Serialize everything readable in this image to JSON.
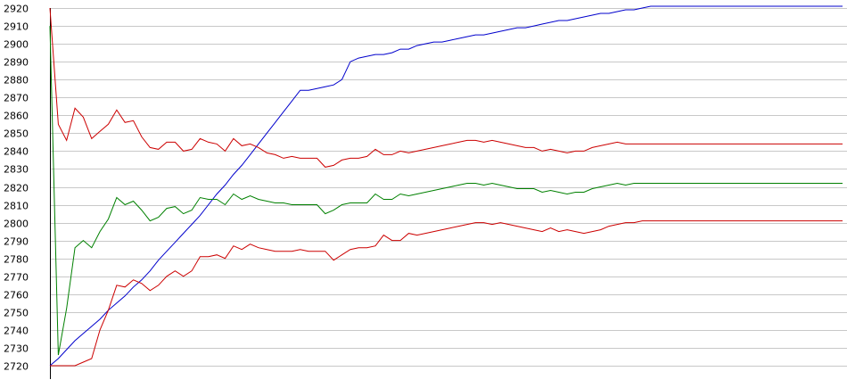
{
  "chart_data": {
    "type": "line",
    "title": "",
    "xlabel": "",
    "ylabel": "",
    "ylim": [
      2720,
      2920
    ],
    "grid": true,
    "legend": "none",
    "y_ticks": [
      "2720",
      "2730",
      "2740",
      "2750",
      "2760",
      "2770",
      "2780",
      "2790",
      "2800",
      "2810",
      "2820",
      "2830",
      "2840",
      "2850",
      "2860",
      "2870",
      "2880",
      "2890",
      "2900",
      "2910",
      "2920"
    ],
    "x": [
      1,
      2,
      3,
      4,
      5,
      6,
      7,
      8,
      9,
      10,
      11,
      12,
      13,
      14,
      15,
      16,
      17,
      18,
      19,
      20,
      21,
      22,
      23,
      24,
      25,
      26,
      27,
      28,
      29,
      30,
      31,
      32,
      33,
      34,
      35,
      36,
      37,
      38,
      39,
      40,
      41,
      42,
      43,
      44,
      45,
      46,
      47,
      48,
      49,
      50,
      51,
      52,
      53,
      54,
      55,
      56,
      57,
      58,
      59,
      60,
      61,
      62,
      63,
      64,
      65,
      66,
      67,
      68,
      69,
      70,
      71,
      72,
      73,
      74,
      75,
      76,
      77,
      78,
      79,
      80,
      81,
      82,
      83,
      84,
      85,
      86,
      87,
      88,
      89,
      90,
      91,
      92,
      93,
      94,
      95,
      96
    ],
    "series": [
      {
        "color": "#0000cc",
        "values": [
          2720,
          2724,
          2729,
          2734,
          2738,
          2742,
          2746,
          2751,
          2755,
          2759,
          2764,
          2768,
          2773,
          2779,
          2784,
          2789,
          2794,
          2799,
          2804,
          2810,
          2816,
          2821,
          2827,
          2832,
          2838,
          2844,
          2850,
          2856,
          2862,
          2868,
          2874,
          2874,
          2875,
          2876,
          2877,
          2880,
          2890,
          2892,
          2893,
          2894,
          2894,
          2895,
          2897,
          2897,
          2899,
          2900,
          2901,
          2901,
          2902,
          2903,
          2904,
          2905,
          2905,
          2906,
          2907,
          2908,
          2909,
          2909,
          2910,
          2911,
          2912,
          2913,
          2913,
          2914,
          2915,
          2916,
          2917,
          2917,
          2918,
          2919,
          2919,
          2920,
          2921,
          2921,
          2921,
          2921,
          2921,
          2921,
          2921,
          2921,
          2921,
          2921,
          2921,
          2921,
          2921,
          2921,
          2921,
          2921,
          2921,
          2921,
          2921,
          2921,
          2921,
          2921,
          2921,
          2921
        ]
      },
      {
        "color": "#cc0000",
        "values": [
          2920,
          2855,
          2846,
          2864,
          2859,
          2847,
          2851,
          2855,
          2863,
          2856,
          2857,
          2848,
          2842,
          2841,
          2845,
          2845,
          2840,
          2841,
          2847,
          2845,
          2844,
          2840,
          2847,
          2843,
          2844,
          2842,
          2839,
          2838,
          2836,
          2837,
          2836,
          2836,
          2836,
          2831,
          2832,
          2835,
          2836,
          2836,
          2837,
          2841,
          2838,
          2838,
          2840,
          2839,
          2840,
          2841,
          2842,
          2843,
          2844,
          2845,
          2846,
          2846,
          2845,
          2846,
          2845,
          2844,
          2843,
          2842,
          2842,
          2840,
          2841,
          2840,
          2839,
          2840,
          2840,
          2842,
          2843,
          2844,
          2845,
          2844,
          2844,
          2844,
          2844,
          2844,
          2844,
          2844,
          2844,
          2844,
          2844,
          2844,
          2844,
          2844,
          2844,
          2844,
          2844,
          2844,
          2844,
          2844,
          2844,
          2844,
          2844,
          2844,
          2844,
          2844,
          2844,
          2844
        ]
      },
      {
        "color": "#008000",
        "values": [
          2910,
          2726,
          2752,
          2786,
          2790,
          2786,
          2795,
          2802,
          2814,
          2810,
          2812,
          2807,
          2801,
          2803,
          2808,
          2809,
          2805,
          2807,
          2814,
          2813,
          2813,
          2810,
          2816,
          2813,
          2815,
          2813,
          2812,
          2811,
          2811,
          2810,
          2810,
          2810,
          2810,
          2805,
          2807,
          2810,
          2811,
          2811,
          2811,
          2816,
          2813,
          2813,
          2816,
          2815,
          2816,
          2817,
          2818,
          2819,
          2820,
          2821,
          2822,
          2822,
          2821,
          2822,
          2821,
          2820,
          2819,
          2819,
          2819,
          2817,
          2818,
          2817,
          2816,
          2817,
          2817,
          2819,
          2820,
          2821,
          2822,
          2821,
          2822,
          2822,
          2822,
          2822,
          2822,
          2822,
          2822,
          2822,
          2822,
          2822,
          2822,
          2822,
          2822,
          2822,
          2822,
          2822,
          2822,
          2822,
          2822,
          2822,
          2822,
          2822,
          2822,
          2822,
          2822,
          2822
        ]
      },
      {
        "color": "#cc0000",
        "values": [
          2720,
          2720,
          2720,
          2720,
          2722,
          2724,
          2740,
          2751,
          2765,
          2764,
          2768,
          2766,
          2762,
          2765,
          2770,
          2773,
          2770,
          2773,
          2781,
          2781,
          2782,
          2780,
          2787,
          2785,
          2788,
          2786,
          2785,
          2784,
          2784,
          2784,
          2785,
          2784,
          2784,
          2784,
          2779,
          2782,
          2785,
          2786,
          2786,
          2787,
          2793,
          2790,
          2790,
          2794,
          2793,
          2794,
          2795,
          2796,
          2797,
          2798,
          2799,
          2800,
          2800,
          2799,
          2800,
          2799,
          2798,
          2797,
          2796,
          2795,
          2797,
          2795,
          2796,
          2795,
          2794,
          2795,
          2796,
          2798,
          2799,
          2800,
          2800,
          2801,
          2801,
          2801,
          2801,
          2801,
          2801,
          2801,
          2801,
          2801,
          2801,
          2801,
          2801,
          2801,
          2801,
          2801,
          2801,
          2801,
          2801,
          2801,
          2801,
          2801,
          2801,
          2801,
          2801,
          2801
        ]
      }
    ]
  }
}
